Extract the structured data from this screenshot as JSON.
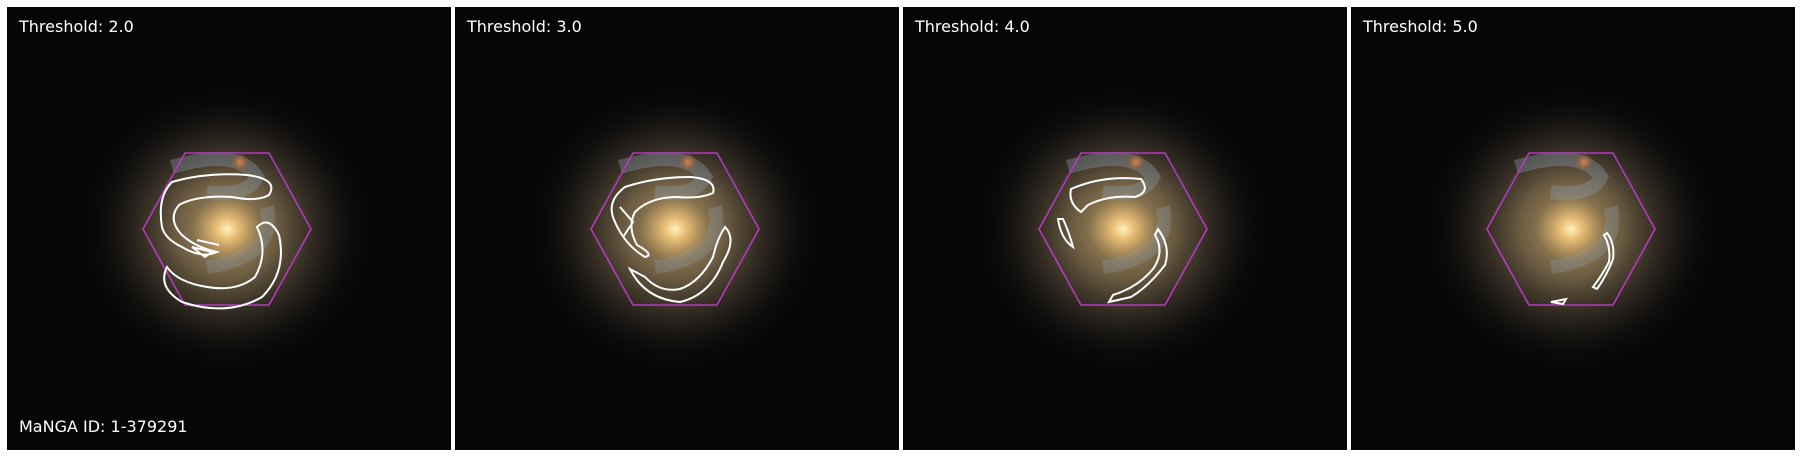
{
  "panels": [
    {
      "threshold_label": "Threshold: 2.0"
    },
    {
      "threshold_label": "Threshold: 3.0"
    },
    {
      "threshold_label": "Threshold: 4.0"
    },
    {
      "threshold_label": "Threshold: 5.0"
    }
  ],
  "manga_id_label": "MaNGA ID: 1-379291",
  "colors": {
    "hexagon": "#b23bbf",
    "contour": "#ffffff",
    "label_text": "#ffffff"
  }
}
